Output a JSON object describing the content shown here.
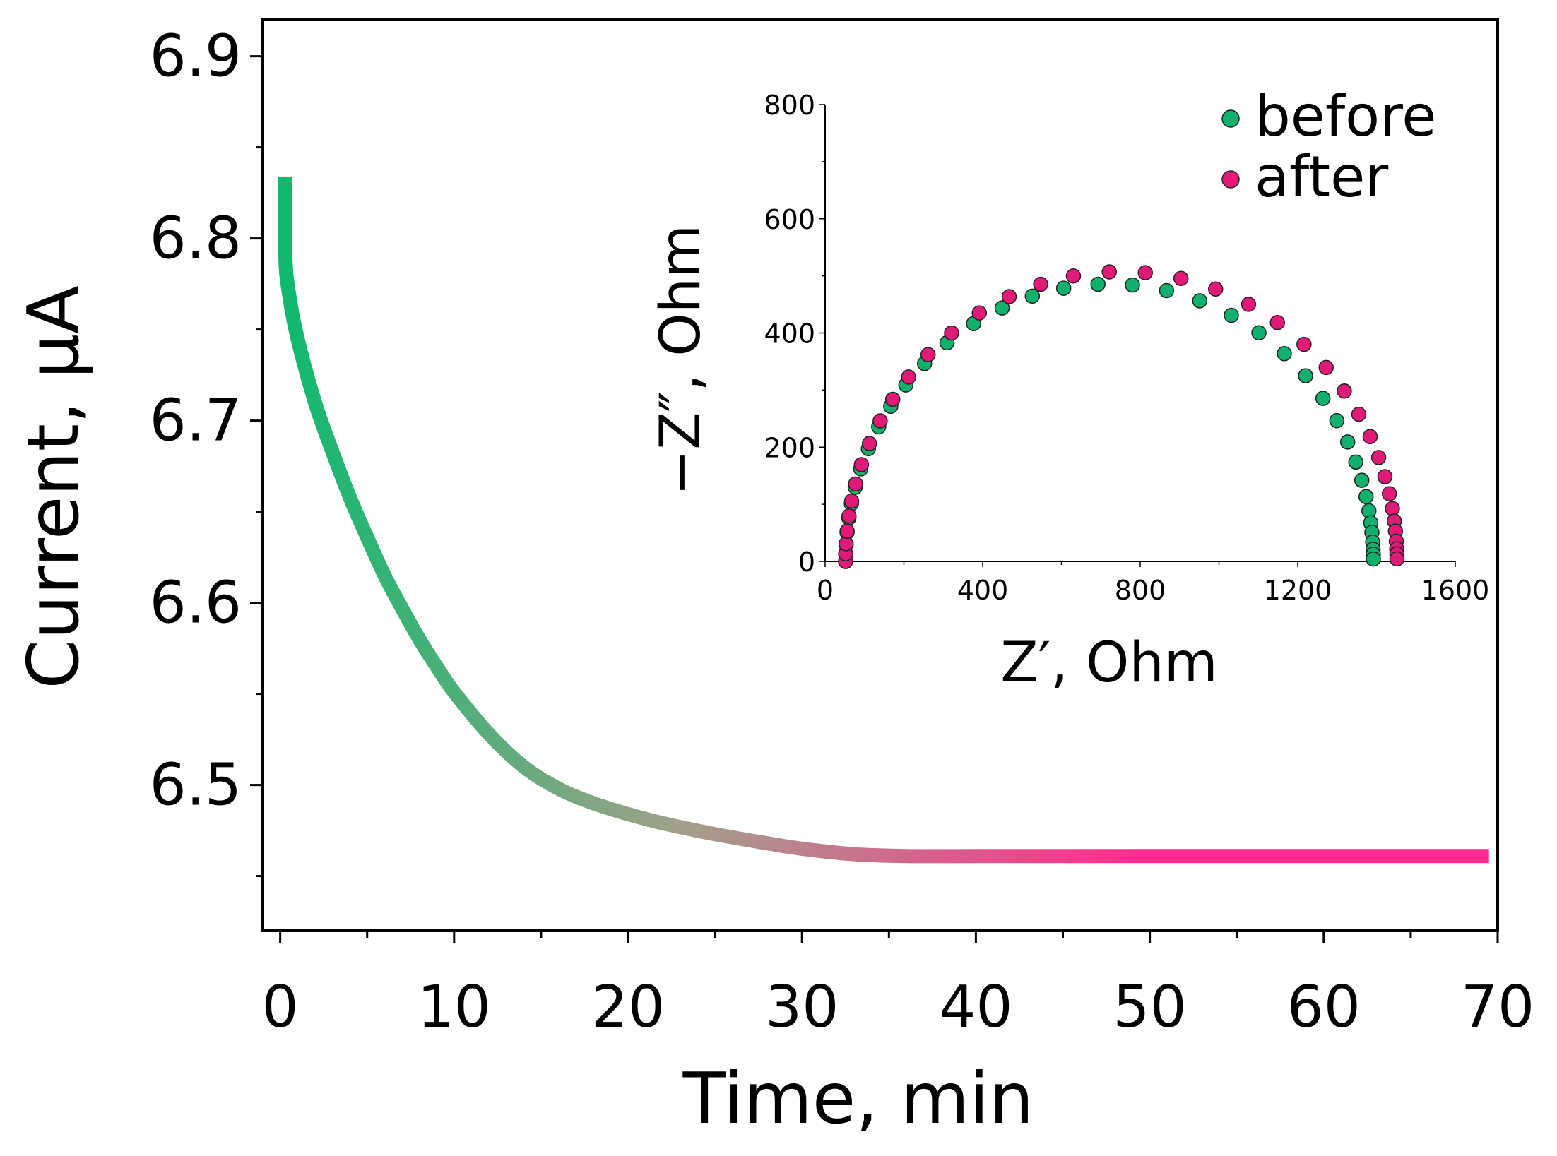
{
  "chart_data": [
    {
      "id": "main",
      "type": "line",
      "xlabel": "Time, min",
      "ylabel": "Current, µA",
      "xlim": [
        -1,
        70
      ],
      "ylim": [
        6.42,
        6.92
      ],
      "xticks": [
        0,
        10,
        20,
        30,
        40,
        50,
        60,
        70
      ],
      "xtick_labels": [
        "0",
        "10",
        "20",
        "30",
        "40",
        "50",
        "60",
        "70"
      ],
      "yticks": [
        6.5,
        6.6,
        6.7,
        6.8,
        6.9
      ],
      "ytick_labels": [
        "6.5",
        "6.6",
        "6.7",
        "6.8",
        "6.9"
      ],
      "series": [
        {
          "name": "current",
          "x": [
            0.3,
            0.3,
            0.5,
            1,
            2,
            3,
            4,
            5,
            6,
            7,
            8,
            9,
            10,
            12,
            14,
            16,
            18,
            20,
            22,
            25,
            28,
            30,
            33,
            36,
            40,
            45,
            50,
            55,
            60,
            65,
            69.5
          ],
          "y": [
            6.834,
            6.79,
            6.77,
            6.745,
            6.71,
            6.683,
            6.658,
            6.636,
            6.615,
            6.597,
            6.58,
            6.565,
            6.551,
            6.528,
            6.51,
            6.498,
            6.49,
            6.484,
            6.479,
            6.473,
            6.468,
            6.465,
            6.462,
            6.461,
            6.461,
            6.461,
            6.461,
            6.461,
            6.461,
            6.461,
            6.461
          ],
          "gradient": [
            "#10b96e",
            "#a3a08b",
            "#ff2e8f"
          ]
        }
      ]
    },
    {
      "id": "inset",
      "type": "scatter",
      "xlabel": "Z′, Ohm",
      "ylabel": "−Z″, Ohm",
      "xlim": [
        0,
        1600
      ],
      "ylim": [
        0,
        800
      ],
      "xticks": [
        0,
        400,
        800,
        1200,
        1600
      ],
      "xtick_labels": [
        "0",
        "400",
        "800",
        "1200",
        "1600"
      ],
      "yticks": [
        0,
        200,
        400,
        600,
        800
      ],
      "ytick_labels": [
        "0",
        "200",
        "400",
        "600",
        "800"
      ],
      "series": [
        {
          "name": "before",
          "color": "#12b06d",
          "center": 722,
          "radius": 670,
          "y_scale": 0.725,
          "angles_deg": [
            180,
            178.5,
            176.5,
            174,
            171,
            168,
            164.5,
            160.5,
            156,
            151,
            146,
            140.5,
            134.5,
            128,
            121,
            114,
            107,
            100,
            92.5,
            85,
            77.5,
            70,
            62.5,
            55.5,
            48.5,
            42,
            36,
            30.5,
            25.5,
            21,
            17,
            13.5,
            10.5,
            8,
            6,
            4,
            2.5,
            1.5,
            0.5
          ]
        },
        {
          "name": "after",
          "color": "#e21a77",
          "center": 752,
          "radius": 700,
          "y_scale": 0.725,
          "angles_deg": [
            180,
            178.5,
            176.5,
            174,
            171,
            168,
            164.5,
            160.5,
            156,
            151,
            146,
            140.5,
            134.5,
            128,
            121,
            114,
            107,
            100,
            92.5,
            85,
            77.5,
            70,
            62.5,
            55.5,
            48.5,
            42,
            36,
            30.5,
            25.5,
            21,
            17,
            13.5,
            10.5,
            8,
            6,
            4,
            2.5,
            1.5,
            0.5
          ]
        }
      ],
      "legend": {
        "position": "top-right",
        "labels": [
          "before",
          "after"
        ]
      }
    }
  ]
}
